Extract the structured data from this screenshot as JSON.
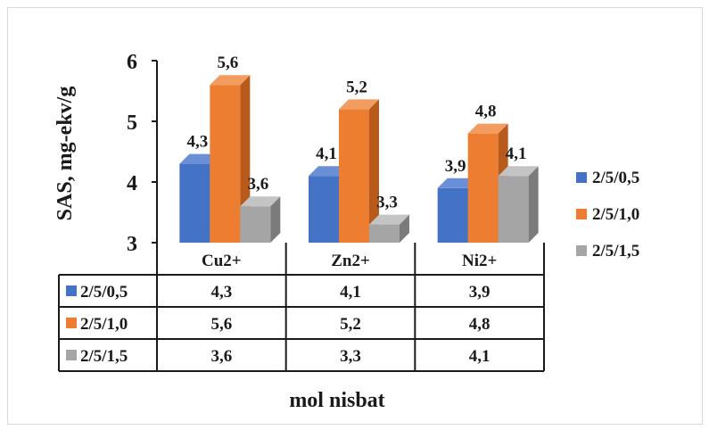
{
  "chart_data": {
    "type": "bar",
    "style": "3d-clustered-column-with-data-table",
    "categories": [
      "Cu2+",
      "Zn2+",
      "Ni2+"
    ],
    "series": [
      {
        "name": "2/5/0,5",
        "values": [
          4.3,
          4.1,
          3.9
        ],
        "labels": [
          "4,3",
          "4,1",
          "3,9"
        ],
        "color": "#4472c4",
        "side_color": "#2e5597",
        "top_color": "#6b8fd6"
      },
      {
        "name": "2/5/1,0",
        "values": [
          5.6,
          5.2,
          4.8
        ],
        "labels": [
          "5,6",
          "5,2",
          "4,8"
        ],
        "color": "#ed7d31",
        "side_color": "#b85a1c",
        "top_color": "#f29c5f"
      },
      {
        "name": "2/5/1,5",
        "values": [
          3.6,
          3.3,
          4.1
        ],
        "labels": [
          "3,6",
          "3,3",
          "4,1"
        ],
        "color": "#a5a5a5",
        "side_color": "#7b7b7b",
        "top_color": "#c4c4c4"
      }
    ],
    "ylabel": "SAS,  mg-ekv/g",
    "xlabel": "mol nisbat",
    "ylim": [
      3,
      6
    ],
    "yticks": [
      "3",
      "4",
      "5",
      "6"
    ],
    "grid": false,
    "legend_position": "right",
    "data_table": true
  }
}
